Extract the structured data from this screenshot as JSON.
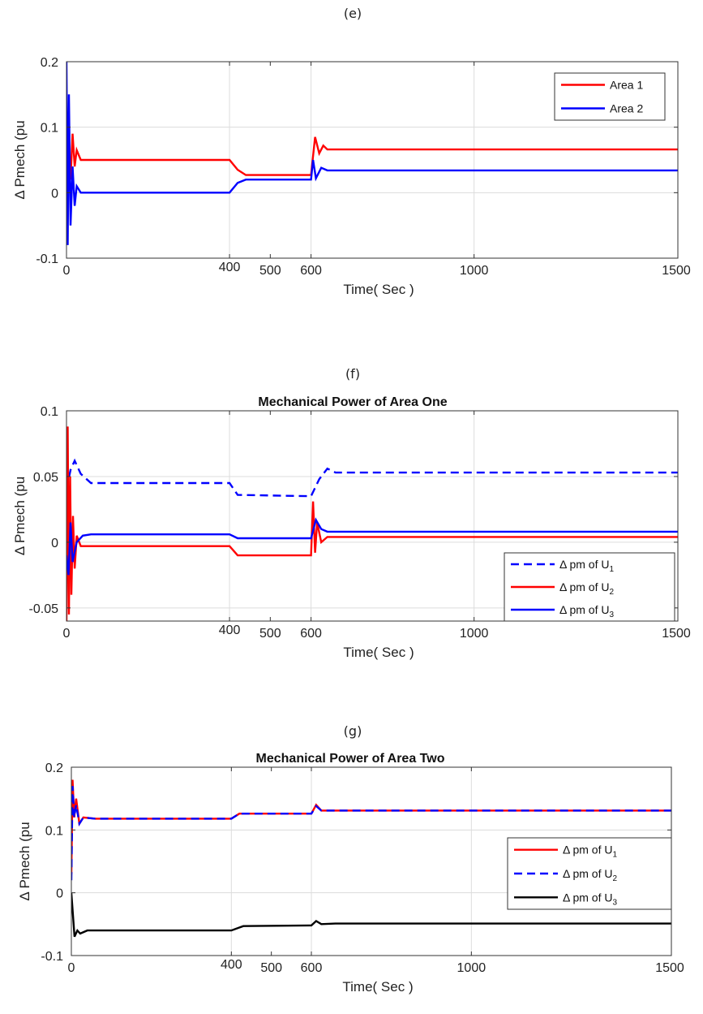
{
  "panels": [
    {
      "label": "(e)",
      "title": "",
      "chart_data": {
        "type": "line",
        "title": "",
        "xlabel": "Time( Sec )",
        "ylabel": "Δ Pmech (pu",
        "xlim": [
          0,
          1500
        ],
        "ylim": [
          -0.1,
          0.2
        ],
        "xticks": [
          0,
          400,
          500,
          600,
          1000,
          1500
        ],
        "yticks": [
          -0.1,
          0,
          0.1,
          0.2
        ],
        "ytick_labels": [
          "-0.1",
          "0",
          "0.1",
          "0.2"
        ],
        "grid": true,
        "legend_position": "top-right",
        "series": [
          {
            "name": "Area 1",
            "color": "#ff0000",
            "style": "solid",
            "points": [
              [
                0,
                0.05
              ],
              [
                5,
                0.095
              ],
              [
                10,
                0.02
              ],
              [
                15,
                0.09
              ],
              [
                20,
                0.04
              ],
              [
                25,
                0.065
              ],
              [
                35,
                0.05
              ],
              [
                400,
                0.05
              ],
              [
                420,
                0.035
              ],
              [
                440,
                0.027
              ],
              [
                600,
                0.027
              ],
              [
                610,
                0.085
              ],
              [
                620,
                0.06
              ],
              [
                630,
                0.072
              ],
              [
                640,
                0.066
              ],
              [
                1500,
                0.066
              ]
            ]
          },
          {
            "name": "Area 2",
            "color": "#0000ff",
            "style": "solid",
            "points": [
              [
                0,
                0.2
              ],
              [
                3,
                -0.08
              ],
              [
                6,
                0.15
              ],
              [
                10,
                -0.05
              ],
              [
                15,
                0.04
              ],
              [
                20,
                -0.02
              ],
              [
                25,
                0.01
              ],
              [
                35,
                0
              ],
              [
                400,
                0
              ],
              [
                420,
                0.015
              ],
              [
                440,
                0.02
              ],
              [
                600,
                0.02
              ],
              [
                605,
                0.05
              ],
              [
                612,
                0.022
              ],
              [
                625,
                0.038
              ],
              [
                640,
                0.034
              ],
              [
                1500,
                0.034
              ]
            ]
          }
        ]
      }
    },
    {
      "label": "(f)",
      "title": "Mechanical Power of Area One",
      "chart_data": {
        "type": "line",
        "title": "Mechanical Power of Area One",
        "xlabel": "Time( Sec )",
        "ylabel": "Δ Pmech (pu",
        "xlim": [
          0,
          1500
        ],
        "ylim": [
          -0.06,
          0.1
        ],
        "xticks": [
          0,
          400,
          500,
          600,
          1000,
          1500
        ],
        "yticks": [
          -0.05,
          0,
          0.05,
          0.1
        ],
        "ytick_labels": [
          "-0.05",
          "0",
          "0.05",
          "0.1"
        ],
        "grid": true,
        "legend_position": "bottom-right",
        "series": [
          {
            "name": "Δ pm of U",
            "subscript": "1",
            "color": "#0000ff",
            "style": "dashed",
            "points": [
              [
                0,
                0.04
              ],
              [
                10,
                0.055
              ],
              [
                20,
                0.062
              ],
              [
                35,
                0.052
              ],
              [
                60,
                0.045
              ],
              [
                400,
                0.045
              ],
              [
                420,
                0.036
              ],
              [
                600,
                0.035
              ],
              [
                620,
                0.048
              ],
              [
                640,
                0.056
              ],
              [
                660,
                0.053
              ],
              [
                1500,
                0.053
              ]
            ]
          },
          {
            "name": "Δ pm of U",
            "subscript": "2",
            "color": "#ff0000",
            "style": "solid",
            "points": [
              [
                0,
                -0.06
              ],
              [
                3,
                0.088
              ],
              [
                6,
                -0.055
              ],
              [
                9,
                0.05
              ],
              [
                12,
                -0.04
              ],
              [
                16,
                0.02
              ],
              [
                20,
                -0.02
              ],
              [
                25,
                0.005
              ],
              [
                35,
                -0.003
              ],
              [
                400,
                -0.003
              ],
              [
                420,
                -0.01
              ],
              [
                600,
                -0.01
              ],
              [
                605,
                0.031
              ],
              [
                610,
                -0.008
              ],
              [
                615,
                0.015
              ],
              [
                625,
                0
              ],
              [
                640,
                0.004
              ],
              [
                1500,
                0.004
              ]
            ]
          },
          {
            "name": "Δ pm of U",
            "subscript": "3",
            "color": "#0000ff",
            "style": "solid",
            "points": [
              [
                0,
                -0.01
              ],
              [
                5,
                -0.025
              ],
              [
                10,
                0.015
              ],
              [
                15,
                -0.015
              ],
              [
                25,
                0
              ],
              [
                40,
                0.005
              ],
              [
                60,
                0.006
              ],
              [
                400,
                0.006
              ],
              [
                420,
                0.003
              ],
              [
                600,
                0.003
              ],
              [
                612,
                0.017
              ],
              [
                625,
                0.01
              ],
              [
                640,
                0.008
              ],
              [
                1500,
                0.008
              ]
            ]
          }
        ]
      }
    },
    {
      "label": "(g)",
      "title": "Mechanical Power of Area Two",
      "chart_data": {
        "type": "line",
        "title": "Mechanical Power of Area Two",
        "xlabel": "Time( Sec )",
        "ylabel": "Δ Pmech  (pu",
        "xlim": [
          0,
          1500
        ],
        "ylim": [
          -0.1,
          0.2
        ],
        "xticks": [
          0,
          400,
          500,
          600,
          1000,
          1500
        ],
        "yticks": [
          -0.1,
          0,
          0.1,
          0.2
        ],
        "ytick_labels": [
          "-0.1",
          "0",
          "0.1",
          "0.2"
        ],
        "grid": true,
        "legend_position": "right",
        "series": [
          {
            "name": "Δ pm of U",
            "subscript": "1",
            "color": "#ff0000",
            "style": "solid",
            "points": [
              [
                0,
                0.03
              ],
              [
                3,
                0.18
              ],
              [
                7,
                0.12
              ],
              [
                12,
                0.15
              ],
              [
                20,
                0.11
              ],
              [
                30,
                0.12
              ],
              [
                60,
                0.118
              ],
              [
                400,
                0.118
              ],
              [
                420,
                0.126
              ],
              [
                600,
                0.126
              ],
              [
                612,
                0.14
              ],
              [
                625,
                0.131
              ],
              [
                1500,
                0.131
              ]
            ]
          },
          {
            "name": "Δ pm of U",
            "subscript": "2",
            "color": "#0000ff",
            "style": "dashed",
            "points": [
              [
                0,
                0.02
              ],
              [
                3,
                0.17
              ],
              [
                7,
                0.12
              ],
              [
                12,
                0.14
              ],
              [
                20,
                0.11
              ],
              [
                30,
                0.12
              ],
              [
                60,
                0.118
              ],
              [
                400,
                0.118
              ],
              [
                420,
                0.126
              ],
              [
                600,
                0.126
              ],
              [
                612,
                0.138
              ],
              [
                625,
                0.131
              ],
              [
                1500,
                0.131
              ]
            ]
          },
          {
            "name": "Δ pm of U",
            "subscript": "3",
            "color": "#000000",
            "style": "solid",
            "points": [
              [
                0,
                0
              ],
              [
                8,
                -0.07
              ],
              [
                15,
                -0.06
              ],
              [
                22,
                -0.065
              ],
              [
                40,
                -0.06
              ],
              [
                400,
                -0.06
              ],
              [
                430,
                -0.053
              ],
              [
                600,
                -0.052
              ],
              [
                612,
                -0.045
              ],
              [
                625,
                -0.05
              ],
              [
                660,
                -0.049
              ],
              [
                1500,
                -0.049
              ]
            ]
          }
        ]
      }
    }
  ]
}
